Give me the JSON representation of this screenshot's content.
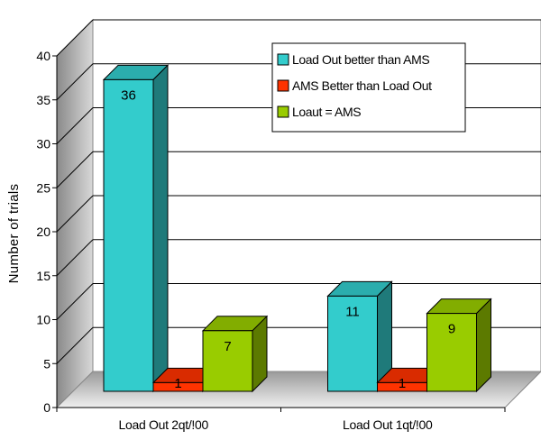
{
  "chart_data": {
    "type": "bar",
    "ylabel": "Number of trials",
    "ylim": [
      0,
      40
    ],
    "yticks": [
      0,
      5,
      10,
      15,
      20,
      25,
      30,
      35,
      40
    ],
    "grid": true,
    "legend_position": "top-right",
    "categories": [
      "Load Out 2qt/!00",
      "Load Out 1qt/!00"
    ],
    "series": [
      {
        "name": "Load Out better than AMS",
        "values": [
          36,
          11
        ],
        "color": "#33CCCC"
      },
      {
        "name": "AMS Better than Load Out",
        "values": [
          1,
          1
        ],
        "color": "#FF3300"
      },
      {
        "name": "Loaut = AMS",
        "values": [
          7,
          9
        ],
        "color": "#99CC00"
      }
    ]
  }
}
